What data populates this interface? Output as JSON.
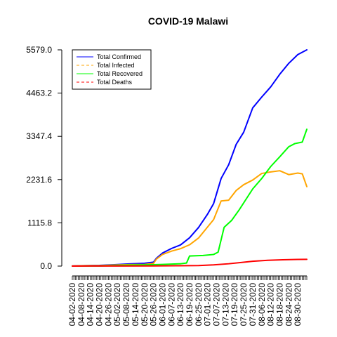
{
  "chart_data": {
    "type": "line",
    "title": "COVID-19 Malawi",
    "xlabel": "",
    "ylabel": "",
    "x_start": "04-02-2020",
    "x_end": "09-05-2020",
    "ylim": [
      0,
      5579.0
    ],
    "yticks": [
      "0.0",
      "1115.8",
      "2231.6",
      "3347.4",
      "4463.2",
      "5579.0"
    ],
    "xticks": [
      "04-02-2020",
      "04-08-2020",
      "04-14-2020",
      "04-20-2020",
      "04-26-2020",
      "05-02-2020",
      "05-08-2020",
      "05-14-2020",
      "05-20-2020",
      "05-26-2020",
      "06-01-2020",
      "06-07-2020",
      "06-13-2020",
      "06-19-2020",
      "06-25-2020",
      "07-01-2020",
      "07-07-2020",
      "07-13-2020",
      "07-19-2020",
      "07-25-2020",
      "07-31-2020",
      "08-06-2020",
      "08-12-2020",
      "08-18-2020",
      "08-24-2020",
      "08-30-2020"
    ],
    "legend_position": "top-left",
    "series": [
      {
        "name": "Total Confirmed",
        "color": "#0000ff",
        "points": [
          [
            "04-02-2020",
            3
          ],
          [
            "04-10-2020",
            12
          ],
          [
            "04-20-2020",
            17
          ],
          [
            "04-30-2020",
            37
          ],
          [
            "05-10-2020",
            56
          ],
          [
            "05-20-2020",
            72
          ],
          [
            "05-26-2020",
            101
          ],
          [
            "05-28-2020",
            203
          ],
          [
            "06-01-2020",
            336
          ],
          [
            "06-07-2020",
            455
          ],
          [
            "06-13-2020",
            547
          ],
          [
            "06-19-2020",
            730
          ],
          [
            "06-25-2020",
            997
          ],
          [
            "07-01-2020",
            1342
          ],
          [
            "07-05-2020",
            1613
          ],
          [
            "07-10-2020",
            2261
          ],
          [
            "07-15-2020",
            2614
          ],
          [
            "07-20-2020",
            3140
          ],
          [
            "07-25-2020",
            3454
          ],
          [
            "07-31-2020",
            4081
          ],
          [
            "08-06-2020",
            4361
          ],
          [
            "08-12-2020",
            4624
          ],
          [
            "08-18-2020",
            4949
          ],
          [
            "08-24-2020",
            5232
          ],
          [
            "08-30-2020",
            5457
          ],
          [
            "09-05-2020",
            5579
          ]
        ]
      },
      {
        "name": "Total Infected",
        "color": "#ffa500",
        "points": [
          [
            "04-02-2020",
            3
          ],
          [
            "04-10-2020",
            10
          ],
          [
            "04-20-2020",
            12
          ],
          [
            "04-30-2020",
            26
          ],
          [
            "05-10-2020",
            38
          ],
          [
            "05-20-2020",
            42
          ],
          [
            "05-26-2020",
            70
          ],
          [
            "05-28-2020",
            183
          ],
          [
            "06-01-2020",
            300
          ],
          [
            "06-07-2020",
            386
          ],
          [
            "06-13-2020",
            450
          ],
          [
            "06-19-2020",
            550
          ],
          [
            "06-25-2020",
            725
          ],
          [
            "07-01-2020",
            1010
          ],
          [
            "07-05-2020",
            1200
          ],
          [
            "07-10-2020",
            1680
          ],
          [
            "07-15-2020",
            1700
          ],
          [
            "07-20-2020",
            1950
          ],
          [
            "07-25-2020",
            2100
          ],
          [
            "07-31-2020",
            2220
          ],
          [
            "08-06-2020",
            2390
          ],
          [
            "08-12-2020",
            2430
          ],
          [
            "08-18-2020",
            2460
          ],
          [
            "08-24-2020",
            2360
          ],
          [
            "08-30-2020",
            2400
          ],
          [
            "09-02-2020",
            2380
          ],
          [
            "09-05-2020",
            2050
          ]
        ]
      },
      {
        "name": "Total Recovered",
        "color": "#00ff00",
        "points": [
          [
            "04-02-2020",
            0
          ],
          [
            "04-20-2020",
            3
          ],
          [
            "05-10-2020",
            24
          ],
          [
            "05-26-2020",
            37
          ],
          [
            "06-01-2020",
            42
          ],
          [
            "06-13-2020",
            60
          ],
          [
            "06-17-2020",
            80
          ],
          [
            "06-19-2020",
            260
          ],
          [
            "06-28-2020",
            275
          ],
          [
            "07-05-2020",
            300
          ],
          [
            "07-08-2020",
            360
          ],
          [
            "07-12-2020",
            1000
          ],
          [
            "07-17-2020",
            1180
          ],
          [
            "07-22-2020",
            1450
          ],
          [
            "07-27-2020",
            1750
          ],
          [
            "07-31-2020",
            1990
          ],
          [
            "08-06-2020",
            2260
          ],
          [
            "08-12-2020",
            2570
          ],
          [
            "08-18-2020",
            2820
          ],
          [
            "08-24-2020",
            3080
          ],
          [
            "08-28-2020",
            3160
          ],
          [
            "09-02-2020",
            3200
          ],
          [
            "09-05-2020",
            3530
          ]
        ]
      },
      {
        "name": "Total Deaths",
        "color": "#ff0000",
        "points": [
          [
            "04-02-2020",
            0
          ],
          [
            "05-01-2020",
            3
          ],
          [
            "05-26-2020",
            4
          ],
          [
            "06-10-2020",
            8
          ],
          [
            "06-25-2020",
            13
          ],
          [
            "07-05-2020",
            32
          ],
          [
            "07-15-2020",
            60
          ],
          [
            "07-25-2020",
            99
          ],
          [
            "07-31-2020",
            125
          ],
          [
            "08-10-2020",
            150
          ],
          [
            "08-20-2020",
            162
          ],
          [
            "08-30-2020",
            172
          ],
          [
            "09-05-2020",
            175
          ]
        ]
      }
    ]
  }
}
